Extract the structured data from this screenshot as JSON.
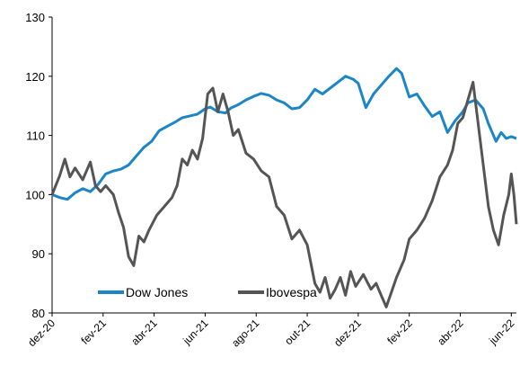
{
  "chart_data": {
    "type": "line",
    "title": "",
    "xlabel": "",
    "ylabel": "",
    "ylim": [
      80,
      130
    ],
    "y_ticks": [
      80,
      90,
      100,
      110,
      120,
      130
    ],
    "x_tick_labels": [
      "dez-20",
      "fev-21",
      "abr-21",
      "jun-21",
      "ago-21",
      "out-21",
      "dez-21",
      "fev-22",
      "abr-22",
      "jun-22"
    ],
    "x_range_months": [
      0,
      18.2
    ],
    "grid": false,
    "legend": "bottom-center",
    "series": [
      {
        "name": "Dow Jones",
        "color": "#1a86c8",
        "points": [
          [
            0,
            100
          ],
          [
            0.3,
            99.5
          ],
          [
            0.6,
            99.2
          ],
          [
            0.9,
            100.3
          ],
          [
            1.2,
            101
          ],
          [
            1.5,
            100.5
          ],
          [
            1.8,
            101.7
          ],
          [
            2.1,
            103.5
          ],
          [
            2.4,
            104
          ],
          [
            2.7,
            104.3
          ],
          [
            3.0,
            105
          ],
          [
            3.3,
            106.5
          ],
          [
            3.6,
            108
          ],
          [
            3.9,
            109
          ],
          [
            4.2,
            110.8
          ],
          [
            4.5,
            111.5
          ],
          [
            4.8,
            112.2
          ],
          [
            5.1,
            113
          ],
          [
            5.4,
            113.3
          ],
          [
            5.7,
            113.6
          ],
          [
            6.0,
            114.5
          ],
          [
            6.2,
            114.8
          ],
          [
            6.5,
            114
          ],
          [
            6.8,
            113.8
          ],
          [
            7.0,
            114.6
          ],
          [
            7.3,
            115.2
          ],
          [
            7.6,
            116
          ],
          [
            7.9,
            116.6
          ],
          [
            8.2,
            117.1
          ],
          [
            8.5,
            116.8
          ],
          [
            8.8,
            116
          ],
          [
            9.1,
            115.5
          ],
          [
            9.4,
            114.5
          ],
          [
            9.7,
            114.7
          ],
          [
            10.0,
            116
          ],
          [
            10.3,
            117.8
          ],
          [
            10.6,
            117
          ],
          [
            10.9,
            118
          ],
          [
            11.2,
            119
          ],
          [
            11.5,
            120
          ],
          [
            11.8,
            119.5
          ],
          [
            12.0,
            118.8
          ],
          [
            12.3,
            114.7
          ],
          [
            12.6,
            117
          ],
          [
            12.9,
            118.5
          ],
          [
            13.2,
            120
          ],
          [
            13.5,
            121.3
          ],
          [
            13.7,
            120.5
          ],
          [
            14.0,
            116.5
          ],
          [
            14.3,
            117
          ],
          [
            14.6,
            115
          ],
          [
            14.9,
            113.2
          ],
          [
            15.2,
            114
          ],
          [
            15.5,
            110.5
          ],
          [
            15.8,
            112.5
          ],
          [
            16.1,
            114
          ],
          [
            16.3,
            115.5
          ],
          [
            16.6,
            116
          ],
          [
            16.9,
            114.5
          ],
          [
            17.1,
            112
          ],
          [
            17.4,
            109
          ],
          [
            17.6,
            110.5
          ],
          [
            17.8,
            109.5
          ],
          [
            18.0,
            109.8
          ],
          [
            18.2,
            109.5
          ]
        ]
      },
      {
        "name": "Ibovespa",
        "color": "#555555",
        "points": [
          [
            0,
            100
          ],
          [
            0.3,
            103.2
          ],
          [
            0.5,
            106
          ],
          [
            0.7,
            103
          ],
          [
            0.9,
            104.5
          ],
          [
            1.2,
            102.5
          ],
          [
            1.5,
            105.5
          ],
          [
            1.7,
            101.5
          ],
          [
            1.9,
            100.5
          ],
          [
            2.1,
            101.5
          ],
          [
            2.4,
            100
          ],
          [
            2.6,
            97
          ],
          [
            2.8,
            94.5
          ],
          [
            3.0,
            89.5
          ],
          [
            3.2,
            88
          ],
          [
            3.4,
            93
          ],
          [
            3.6,
            92
          ],
          [
            3.8,
            94
          ],
          [
            4.1,
            96.5
          ],
          [
            4.4,
            98
          ],
          [
            4.7,
            99.5
          ],
          [
            4.9,
            101.5
          ],
          [
            5.1,
            106
          ],
          [
            5.3,
            105
          ],
          [
            5.5,
            107.5
          ],
          [
            5.7,
            106
          ],
          [
            5.9,
            109.5
          ],
          [
            6.1,
            117
          ],
          [
            6.3,
            118
          ],
          [
            6.5,
            114
          ],
          [
            6.7,
            117
          ],
          [
            6.9,
            114
          ],
          [
            7.1,
            110
          ],
          [
            7.3,
            111
          ],
          [
            7.6,
            107
          ],
          [
            7.9,
            106
          ],
          [
            8.2,
            104
          ],
          [
            8.5,
            103
          ],
          [
            8.8,
            98
          ],
          [
            9.1,
            96.5
          ],
          [
            9.4,
            92.5
          ],
          [
            9.7,
            94
          ],
          [
            10.0,
            91.5
          ],
          [
            10.3,
            85
          ],
          [
            10.5,
            83.5
          ],
          [
            10.7,
            86
          ],
          [
            10.9,
            82.5
          ],
          [
            11.1,
            84
          ],
          [
            11.3,
            86
          ],
          [
            11.5,
            83
          ],
          [
            11.7,
            87
          ],
          [
            11.9,
            84.5
          ],
          [
            12.2,
            86.5
          ],
          [
            12.5,
            84
          ],
          [
            12.7,
            85
          ],
          [
            12.9,
            83
          ],
          [
            13.1,
            81
          ],
          [
            13.3,
            83.5
          ],
          [
            13.5,
            86
          ],
          [
            13.8,
            89
          ],
          [
            14.0,
            92.5
          ],
          [
            14.3,
            94
          ],
          [
            14.6,
            96
          ],
          [
            14.9,
            99
          ],
          [
            15.2,
            103
          ],
          [
            15.5,
            105
          ],
          [
            15.7,
            107.5
          ],
          [
            15.9,
            112
          ],
          [
            16.1,
            113
          ],
          [
            16.3,
            116
          ],
          [
            16.5,
            119
          ],
          [
            16.7,
            112
          ],
          [
            16.9,
            105
          ],
          [
            17.1,
            98
          ],
          [
            17.3,
            94
          ],
          [
            17.5,
            91.5
          ],
          [
            17.7,
            96.5
          ],
          [
            17.9,
            100
          ],
          [
            18.0,
            103.5
          ],
          [
            18.1,
            100
          ],
          [
            18.2,
            95
          ]
        ]
      }
    ]
  }
}
